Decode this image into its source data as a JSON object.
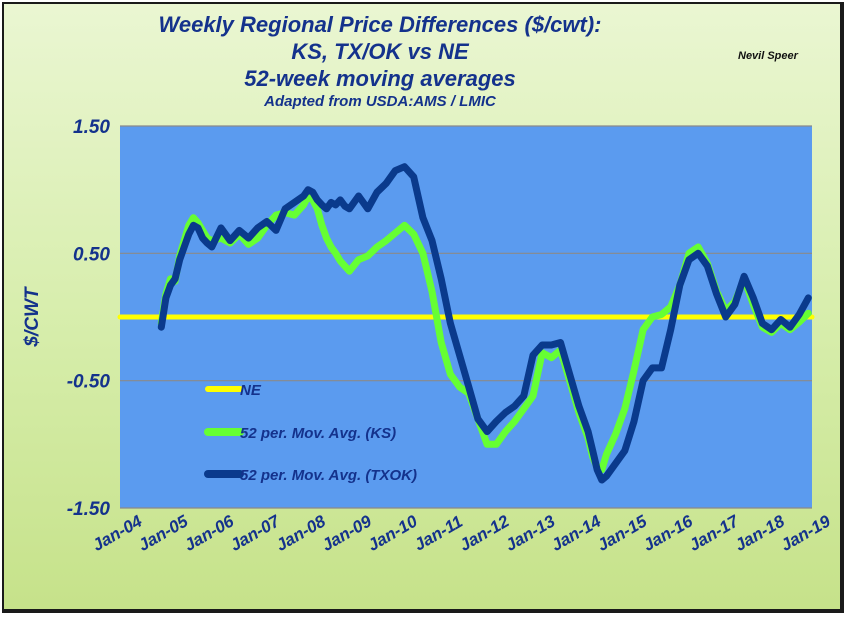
{
  "author": "Nevil Speer",
  "colors": {
    "plot_bg": "#5b9bef",
    "ne": "#ffff00",
    "ks": "#66ff33",
    "txok": "#0a3a8c",
    "text": "#14328c",
    "grid": "#8a8a8a"
  },
  "chart_data": {
    "type": "line",
    "title_lines": [
      "Weekly Regional Price Differences ($/cwt):",
      "KS, TX/OK vs NE",
      "52-week moving averages",
      "Adapted from USDA:AMS / LMIC"
    ],
    "ylabel": "$/CWT",
    "ylim": [
      -1.5,
      1.5
    ],
    "yticks": [
      1.5,
      0.5,
      -0.5,
      -1.5
    ],
    "ytick_labels": [
      "1.50",
      "0.50",
      "-0.50",
      "-1.50"
    ],
    "xlim": [
      2004.0,
      2019.08
    ],
    "xticks": [
      2004,
      2005,
      2006,
      2007,
      2008,
      2009,
      2010,
      2011,
      2012,
      2013,
      2014,
      2015,
      2016,
      2017,
      2018,
      2019
    ],
    "xtick_labels": [
      "Jan-04",
      "Jan-05",
      "Jan-06",
      "Jan-07",
      "Jan-08",
      "Jan-09",
      "Jan-10",
      "Jan-11",
      "Jan-12",
      "Jan-13",
      "Jan-14",
      "Jan-15",
      "Jan-16",
      "Jan-17",
      "Jan-18",
      "Jan-19"
    ],
    "grid": "horizontal",
    "legend_position": "bottom-left",
    "series": [
      {
        "name": "NE",
        "x": [
          2004.0,
          2019.08
        ],
        "values": [
          0.0,
          0.0
        ]
      },
      {
        "name": "52 per. Mov. Avg. (KS)",
        "x": [
          2004.9,
          2005.0,
          2005.1,
          2005.2,
          2005.3,
          2005.4,
          2005.5,
          2005.6,
          2005.7,
          2005.8,
          2005.9,
          2006.0,
          2006.2,
          2006.4,
          2006.6,
          2006.8,
          2007.0,
          2007.2,
          2007.4,
          2007.6,
          2007.8,
          2008.0,
          2008.1,
          2008.2,
          2008.3,
          2008.4,
          2008.5,
          2008.6,
          2008.7,
          2008.8,
          2008.9,
          2009.0,
          2009.2,
          2009.4,
          2009.6,
          2009.8,
          2010.0,
          2010.2,
          2010.4,
          2010.6,
          2010.8,
          2011.0,
          2011.2,
          2011.4,
          2011.6,
          2011.8,
          2012.0,
          2012.2,
          2012.4,
          2012.6,
          2012.8,
          2013.0,
          2013.2,
          2013.4,
          2013.6,
          2013.8,
          2014.0,
          2014.2,
          2014.3,
          2014.4,
          2014.5,
          2014.6,
          2014.8,
          2015.0,
          2015.2,
          2015.4,
          2015.6,
          2015.8,
          2016.0,
          2016.2,
          2016.4,
          2016.6,
          2016.8,
          2017.0,
          2017.2,
          2017.4,
          2017.6,
          2017.8,
          2018.0,
          2018.2,
          2018.4,
          2018.6,
          2018.8,
          2019.0
        ],
        "values": [
          -0.05,
          0.18,
          0.3,
          0.28,
          0.48,
          0.6,
          0.72,
          0.78,
          0.74,
          0.68,
          0.62,
          0.6,
          0.62,
          0.58,
          0.65,
          0.57,
          0.62,
          0.72,
          0.8,
          0.82,
          0.8,
          0.88,
          0.95,
          0.92,
          0.85,
          0.72,
          0.62,
          0.55,
          0.5,
          0.44,
          0.4,
          0.36,
          0.45,
          0.48,
          0.55,
          0.6,
          0.66,
          0.72,
          0.65,
          0.5,
          0.2,
          -0.2,
          -0.45,
          -0.55,
          -0.6,
          -0.8,
          -1.0,
          -1.0,
          -0.9,
          -0.82,
          -0.72,
          -0.62,
          -0.28,
          -0.32,
          -0.26,
          -0.5,
          -0.75,
          -0.95,
          -1.1,
          -1.18,
          -1.2,
          -1.08,
          -0.92,
          -0.72,
          -0.42,
          -0.1,
          0.0,
          0.02,
          0.08,
          0.25,
          0.5,
          0.55,
          0.42,
          0.2,
          0.05,
          0.12,
          0.3,
          0.1,
          -0.08,
          -0.12,
          -0.05,
          -0.1,
          -0.04,
          0.03
        ]
      },
      {
        "name": "52 per. Mov. Avg. (TXOK)",
        "x": [
          2004.9,
          2005.0,
          2005.1,
          2005.2,
          2005.3,
          2005.4,
          2005.5,
          2005.6,
          2005.7,
          2005.8,
          2005.9,
          2006.0,
          2006.2,
          2006.4,
          2006.6,
          2006.8,
          2007.0,
          2007.2,
          2007.4,
          2007.6,
          2007.8,
          2008.0,
          2008.1,
          2008.2,
          2008.3,
          2008.4,
          2008.5,
          2008.6,
          2008.7,
          2008.8,
          2008.9,
          2009.0,
          2009.2,
          2009.4,
          2009.6,
          2009.8,
          2010.0,
          2010.2,
          2010.4,
          2010.6,
          2010.8,
          2011.0,
          2011.2,
          2011.4,
          2011.6,
          2011.8,
          2012.0,
          2012.2,
          2012.4,
          2012.6,
          2012.8,
          2013.0,
          2013.2,
          2013.4,
          2013.6,
          2013.8,
          2014.0,
          2014.2,
          2014.3,
          2014.4,
          2014.5,
          2014.6,
          2014.8,
          2015.0,
          2015.2,
          2015.4,
          2015.6,
          2015.8,
          2016.0,
          2016.2,
          2016.4,
          2016.6,
          2016.8,
          2017.0,
          2017.2,
          2017.4,
          2017.6,
          2017.8,
          2018.0,
          2018.2,
          2018.4,
          2018.6,
          2018.8,
          2019.0
        ],
        "values": [
          -0.08,
          0.15,
          0.25,
          0.3,
          0.45,
          0.55,
          0.65,
          0.72,
          0.7,
          0.62,
          0.58,
          0.55,
          0.7,
          0.6,
          0.68,
          0.62,
          0.7,
          0.75,
          0.68,
          0.85,
          0.9,
          0.95,
          1.0,
          0.98,
          0.92,
          0.88,
          0.85,
          0.9,
          0.88,
          0.92,
          0.87,
          0.85,
          0.95,
          0.85,
          0.98,
          1.05,
          1.15,
          1.18,
          1.1,
          0.78,
          0.6,
          0.3,
          -0.05,
          -0.3,
          -0.55,
          -0.8,
          -0.9,
          -0.82,
          -0.75,
          -0.7,
          -0.62,
          -0.3,
          -0.22,
          -0.22,
          -0.2,
          -0.45,
          -0.7,
          -0.9,
          -1.05,
          -1.2,
          -1.28,
          -1.25,
          -1.15,
          -1.05,
          -0.82,
          -0.5,
          -0.4,
          -0.4,
          -0.1,
          0.25,
          0.45,
          0.5,
          0.4,
          0.18,
          0.0,
          0.1,
          0.32,
          0.15,
          -0.05,
          -0.1,
          -0.02,
          -0.08,
          0.02,
          0.15
        ]
      }
    ]
  }
}
